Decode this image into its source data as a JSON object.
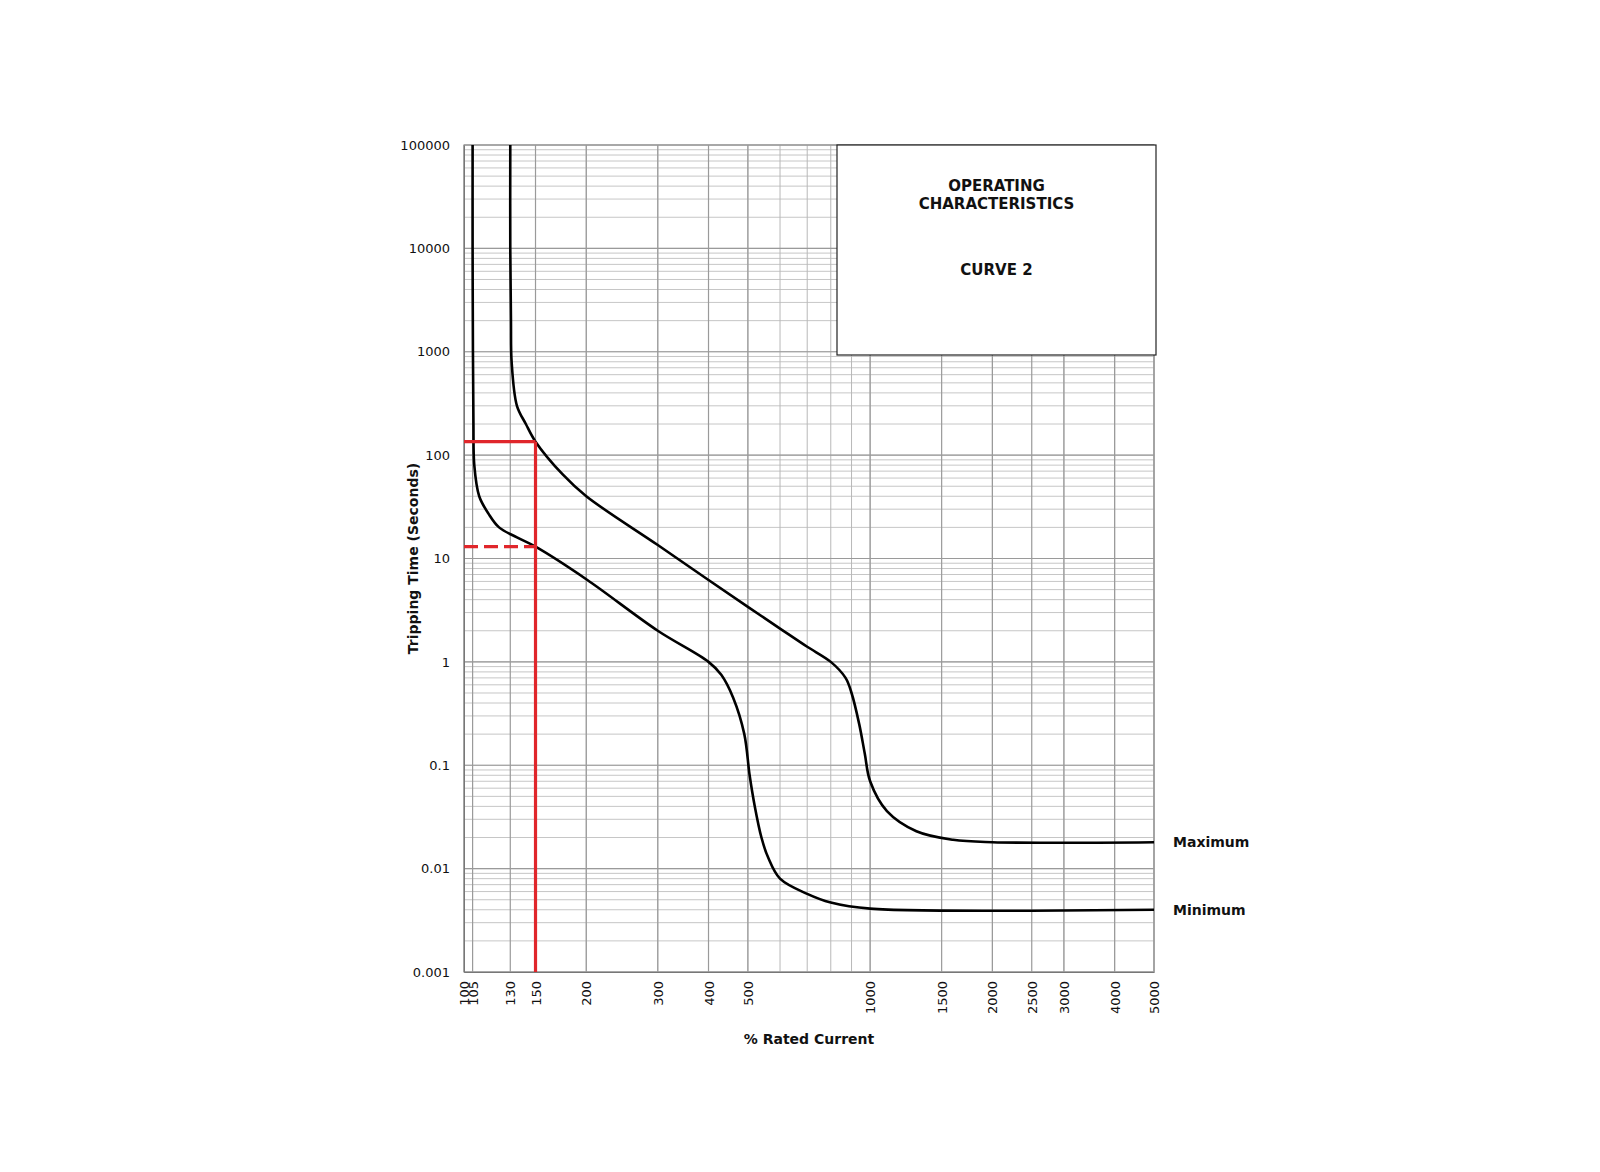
{
  "chart_data": {
    "type": "line",
    "title": "OPERATING CHARACTERISTICS",
    "subtitle": "CURVE 2",
    "x_label": "% Rated Current",
    "y_label": "Tripping Time (Seconds)",
    "log": true,
    "grid": true,
    "xlim": [
      100,
      5000
    ],
    "ylim": [
      0.001,
      100000
    ],
    "xticks": [
      100,
      105,
      130,
      150,
      200,
      300,
      400,
      500,
      1000,
      1500,
      2000,
      2500,
      3000,
      4000,
      5000
    ],
    "yticks": [
      0.001,
      0.01,
      0.1,
      1,
      10,
      100,
      1000,
      10000,
      100000
    ],
    "series": [
      {
        "name": "Maximum",
        "color": "#000000",
        "x": [
          130,
          130,
          130.5,
          131,
          135,
          142,
          150,
          175,
          200,
          300,
          400,
          500,
          600,
          700,
          800,
          870,
          900,
          940,
          970,
          1000,
          1100,
          1300,
          1600,
          2000,
          5000
        ],
        "values": [
          100000,
          10000,
          2000,
          800,
          300,
          200,
          135,
          65,
          40,
          13.5,
          6.2,
          3.4,
          2.1,
          1.4,
          1.0,
          0.7,
          0.5,
          0.25,
          0.13,
          0.07,
          0.036,
          0.023,
          0.019,
          0.018,
          0.018
        ]
      },
      {
        "name": "Minimum",
        "color": "#000000",
        "x": [
          105,
          105,
          105.2,
          105.5,
          106,
          109,
          115,
          122,
          135,
          150,
          200,
          300,
          400,
          430,
          460,
          490,
          505,
          520,
          540,
          560,
          600,
          700,
          800,
          1000,
          5000
        ],
        "values": [
          100000,
          10000,
          1000,
          200,
          80,
          40,
          27,
          20,
          16,
          13,
          6.3,
          2.0,
          1.0,
          0.75,
          0.45,
          0.2,
          0.08,
          0.04,
          0.02,
          0.013,
          0.008,
          0.0057,
          0.0047,
          0.0041,
          0.004
        ]
      }
    ],
    "reference_lines": [
      {
        "x": 150,
        "y": 135,
        "line_style": "solid",
        "color": "#e0262b"
      },
      {
        "x": 150,
        "y": 13,
        "line_style": "dashed",
        "color": "#e0262b"
      }
    ]
  }
}
